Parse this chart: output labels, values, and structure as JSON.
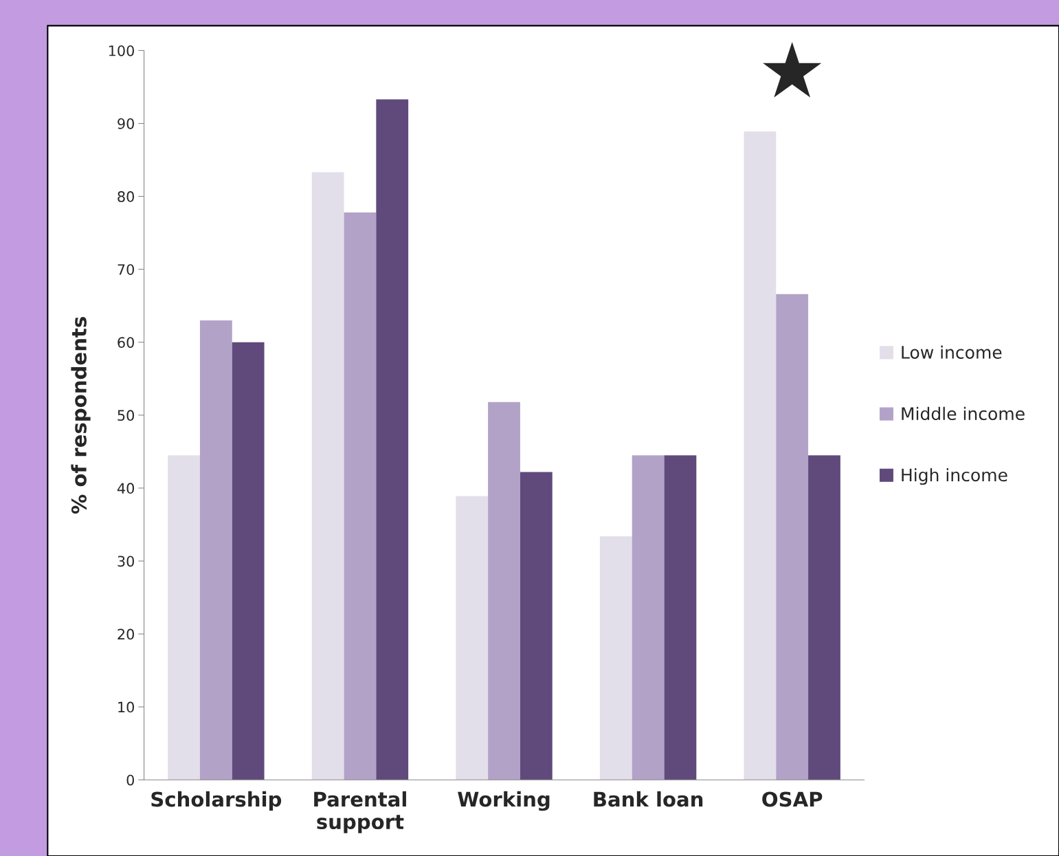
{
  "chart_data": {
    "type": "bar",
    "ylabel": "% of respondents",
    "categories": [
      "Scholarship",
      "Parental\nsupport",
      "Working",
      "Bank loan",
      "OSAP"
    ],
    "series": [
      {
        "name": "Low income",
        "color": "#e3dfea",
        "values": [
          44.5,
          83.3,
          38.9,
          33.4,
          88.9
        ]
      },
      {
        "name": "Middle income",
        "color": "#b3a2c8",
        "values": [
          63.0,
          77.8,
          51.8,
          44.5,
          66.6
        ]
      },
      {
        "name": "High income",
        "color": "#604a7b",
        "values": [
          60.0,
          93.3,
          42.2,
          44.5,
          44.5
        ]
      }
    ],
    "ylim": [
      0,
      100
    ],
    "yticks": [
      0,
      10,
      20,
      30,
      40,
      50,
      60,
      70,
      80,
      90,
      100
    ],
    "annotations": [
      "★"
    ],
    "legend": "right",
    "grid": false
  }
}
